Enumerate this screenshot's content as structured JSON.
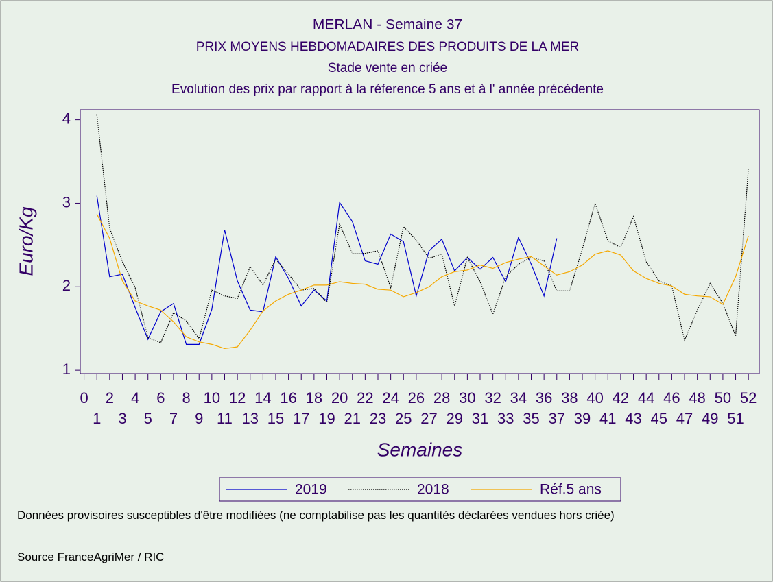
{
  "chart_data": {
    "type": "line",
    "title": "MERLAN - Semaine 37",
    "subtitles": [
      "PRIX MOYENS HEBDOMADAIRES DES PRODUITS DE LA MER",
      "Stade vente en criée",
      "Evolution des prix par rapport à la réference 5 ans et à l' année précédente"
    ],
    "y_label": "Euro/Kg",
    "x_label": "Semaines",
    "x": [
      1,
      2,
      3,
      4,
      5,
      6,
      7,
      8,
      9,
      10,
      11,
      12,
      13,
      14,
      15,
      16,
      17,
      18,
      19,
      20,
      21,
      22,
      23,
      24,
      25,
      26,
      27,
      28,
      29,
      30,
      31,
      32,
      33,
      34,
      35,
      36,
      37,
      38,
      39,
      40,
      41,
      42,
      43,
      44,
      45,
      46,
      47,
      48,
      49,
      50,
      51,
      52
    ],
    "series": [
      {
        "name": "2019",
        "color": "#0000cc",
        "style": "solid",
        "values": [
          3.09,
          2.12,
          2.15,
          1.75,
          1.37,
          1.7,
          1.8,
          1.31,
          1.31,
          1.73,
          2.68,
          2.07,
          1.72,
          1.7,
          2.36,
          2.1,
          1.77,
          1.96,
          1.83,
          3.01,
          2.78,
          2.31,
          2.27,
          2.63,
          2.54,
          1.89,
          2.43,
          2.57,
          2.19,
          2.35,
          2.21,
          2.35,
          2.06,
          2.59,
          2.27,
          1.89,
          2.58,
          null,
          null,
          null,
          null,
          null,
          null,
          null,
          null,
          null,
          null,
          null,
          null,
          null,
          null,
          null
        ]
      },
      {
        "name": "2018",
        "color": "#000000",
        "style": "dotted",
        "values": [
          4.06,
          2.7,
          2.3,
          1.99,
          1.39,
          1.33,
          1.69,
          1.59,
          1.38,
          1.96,
          1.89,
          1.86,
          2.24,
          2.02,
          2.33,
          2.15,
          1.96,
          1.98,
          1.81,
          2.75,
          2.4,
          2.4,
          2.43,
          1.99,
          2.72,
          2.56,
          2.34,
          2.39,
          1.77,
          2.35,
          2.06,
          1.67,
          2.12,
          2.27,
          2.35,
          2.31,
          1.95,
          1.95,
          2.45,
          3.0,
          2.55,
          2.47,
          2.84,
          2.3,
          2.07,
          2.01,
          1.36,
          1.72,
          2.04,
          1.8,
          1.41,
          3.41
        ]
      },
      {
        "name": "Réf.5 ans",
        "color": "#f5a800",
        "style": "solid",
        "values": [
          2.87,
          2.58,
          2.07,
          1.83,
          1.77,
          1.72,
          1.58,
          1.4,
          1.34,
          1.31,
          1.26,
          1.28,
          1.48,
          1.71,
          1.83,
          1.91,
          1.96,
          2.02,
          2.02,
          2.06,
          2.04,
          2.03,
          1.97,
          1.96,
          1.88,
          1.93,
          2.0,
          2.12,
          2.18,
          2.2,
          2.26,
          2.22,
          2.29,
          2.33,
          2.36,
          2.25,
          2.14,
          2.18,
          2.26,
          2.39,
          2.43,
          2.38,
          2.19,
          2.1,
          2.04,
          2.01,
          1.91,
          1.89,
          1.88,
          1.79,
          2.12,
          2.61
        ]
      }
    ],
    "xlim": [
      -0.3,
      52.85
    ],
    "xticks": [
      0,
      1,
      2,
      3,
      4,
      5,
      6,
      7,
      8,
      9,
      10,
      11,
      12,
      13,
      14,
      15,
      16,
      17,
      18,
      19,
      20,
      21,
      22,
      23,
      24,
      25,
      26,
      27,
      28,
      29,
      30,
      31,
      32,
      33,
      34,
      35,
      36,
      37,
      38,
      39,
      40,
      41,
      42,
      43,
      44,
      45,
      46,
      47,
      48,
      49,
      50,
      51,
      52
    ],
    "ylim": [
      0.96,
      4.12
    ],
    "yticks": [
      1,
      2,
      3,
      4
    ],
    "legend": "bottom",
    "notes": [
      "Données provisoires susceptibles d'être modifiées (ne comptabilise pas les quantités déclarées vendues hors criée)",
      "Source FranceAgriMer / RIC"
    ]
  }
}
